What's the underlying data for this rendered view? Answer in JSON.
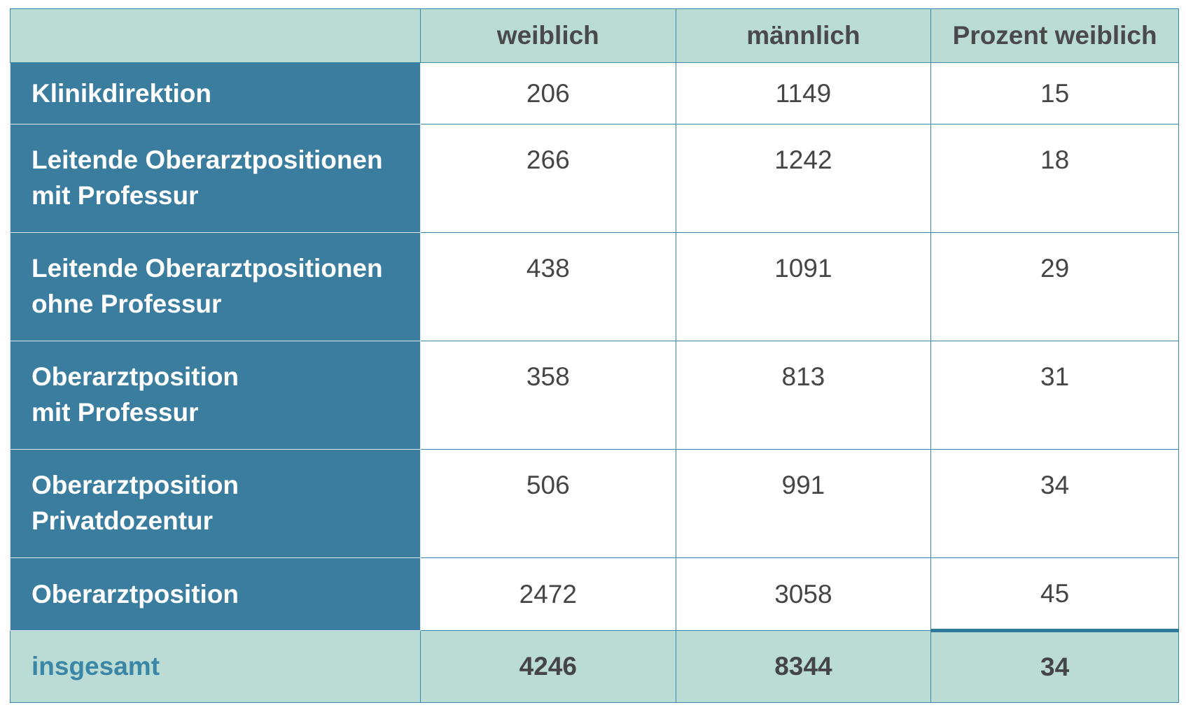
{
  "table": {
    "headers": [
      "",
      "weiblich",
      "männlich",
      "Prozent weiblich"
    ],
    "rows": [
      {
        "label_line1": "Klinikdirektion",
        "label_line2": "",
        "weiblich": "206",
        "maennlich": "1149",
        "prozent": "15"
      },
      {
        "label_line1": "Leitende Oberarztpositionen",
        "label_line2": "mit Professur",
        "weiblich": "266",
        "maennlich": "1242",
        "prozent": "18"
      },
      {
        "label_line1": "Leitende Oberarztpositionen",
        "label_line2": "ohne Professur",
        "weiblich": "438",
        "maennlich": "1091",
        "prozent": "29"
      },
      {
        "label_line1": "Oberarztposition",
        "label_line2": "mit Professur",
        "weiblich": "358",
        "maennlich": "813",
        "prozent": "31"
      },
      {
        "label_line1": "Oberarztposition",
        "label_line2": "Privatdozentur",
        "weiblich": "506",
        "maennlich": "991",
        "prozent": "34"
      },
      {
        "label_line1": "Oberarztposition",
        "label_line2": "",
        "weiblich": "2472",
        "maennlich": "3058",
        "prozent": "45"
      }
    ],
    "total": {
      "label": "insgesamt",
      "weiblich": "4246",
      "maennlich": "8344",
      "prozent": "34"
    }
  },
  "colors": {
    "header_bg": "#badcd5",
    "row_label_bg": "#3a7d9f",
    "border": "#3a86a6",
    "total_label": "#3a86a6"
  }
}
